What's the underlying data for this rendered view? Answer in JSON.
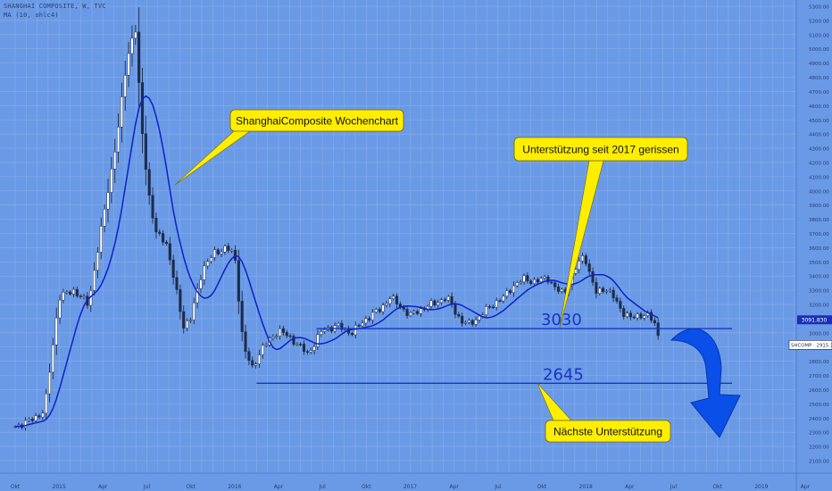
{
  "header": {
    "symbol_line": "SHANGHAI COMPOSITE, W, TVC",
    "indicator_line": "MA (10, ohlc4)"
  },
  "chart_data": {
    "type": "candlestick",
    "timeframe": "weekly",
    "ylim": [
      2000,
      5300
    ],
    "y_ticks": [
      2100,
      2200,
      2300,
      2400,
      2500,
      2600,
      2700,
      2800,
      2900,
      3000,
      3100,
      3200,
      3300,
      3400,
      3500,
      3600,
      3700,
      3800,
      3900,
      4000,
      4100,
      4200,
      4300,
      4400,
      4500,
      4600,
      4700,
      4800,
      4900,
      5000,
      5100,
      5200,
      5300
    ],
    "x_ticks": [
      {
        "label": "Okt",
        "t": 0
      },
      {
        "label": "2015",
        "t": 3
      },
      {
        "label": "Apr",
        "t": 6
      },
      {
        "label": "Jul",
        "t": 9
      },
      {
        "label": "Okt",
        "t": 12
      },
      {
        "label": "2016",
        "t": 15
      },
      {
        "label": "Apr",
        "t": 18
      },
      {
        "label": "Jul",
        "t": 21
      },
      {
        "label": "Okt",
        "t": 24
      },
      {
        "label": "2017",
        "t": 27
      },
      {
        "label": "Apr",
        "t": 30
      },
      {
        "label": "Jul",
        "t": 33
      },
      {
        "label": "Okt",
        "t": 36
      },
      {
        "label": "2018",
        "t": 39
      },
      {
        "label": "Apr",
        "t": 42
      },
      {
        "label": "Jul",
        "t": 45
      },
      {
        "label": "Okt",
        "t": 48
      },
      {
        "label": "2019",
        "t": 51
      },
      {
        "label": "Apr",
        "t": 54
      }
    ],
    "price_path": [
      [
        0,
        2340
      ],
      [
        1,
        2380
      ],
      [
        2,
        2450
      ],
      [
        3,
        3250
      ],
      [
        4,
        3300
      ],
      [
        5,
        3200
      ],
      [
        6,
        3800
      ],
      [
        7,
        4400
      ],
      [
        7.6,
        4900
      ],
      [
        8.2,
        5170
      ],
      [
        8.6,
        4500
      ],
      [
        9.1,
        4000
      ],
      [
        9.6,
        3700
      ],
      [
        10.3,
        3650
      ],
      [
        11,
        3300
      ],
      [
        11.5,
        3050
      ],
      [
        12,
        3100
      ],
      [
        12.8,
        3450
      ],
      [
        13.6,
        3560
      ],
      [
        14.4,
        3600
      ],
      [
        15,
        3550
      ],
      [
        15.6,
        2900
      ],
      [
        16.2,
        2750
      ],
      [
        16.8,
        2880
      ],
      [
        17.4,
        2950
      ],
      [
        18,
        3020
      ],
      [
        19,
        2950
      ],
      [
        20,
        2850
      ],
      [
        21,
        3020
      ],
      [
        22,
        3050
      ],
      [
        23,
        3000
      ],
      [
        24,
        3100
      ],
      [
        25,
        3170
      ],
      [
        25.6,
        3250
      ],
      [
        26.2,
        3200
      ],
      [
        27,
        3120
      ],
      [
        27.6,
        3160
      ],
      [
        28.5,
        3200
      ],
      [
        29.5,
        3250
      ],
      [
        30.5,
        3080
      ],
      [
        31,
        3060
      ],
      [
        31.8,
        3120
      ],
      [
        32.6,
        3200
      ],
      [
        33.4,
        3250
      ],
      [
        34,
        3330
      ],
      [
        34.8,
        3380
      ],
      [
        35.6,
        3360
      ],
      [
        36.4,
        3390
      ],
      [
        37,
        3300
      ],
      [
        37.5,
        3280
      ],
      [
        38.3,
        3450
      ],
      [
        38.9,
        3560
      ],
      [
        39.3,
        3400
      ],
      [
        39.7,
        3280
      ],
      [
        40.3,
        3320
      ],
      [
        40.9,
        3250
      ],
      [
        41.5,
        3150
      ],
      [
        42.1,
        3100
      ],
      [
        42.7,
        3130
      ],
      [
        43.3,
        3120
      ],
      [
        43.8,
        3050
      ],
      [
        44.1,
        2920
      ]
    ],
    "ma_name": "MA (10, ohlc4)",
    "current_price": {
      "symbol": "SHCOMP",
      "value": "2915.118"
    },
    "ma_value_label": "3091.830",
    "support_levels": [
      {
        "value": 3030,
        "label": "3030",
        "t_start": 20.6,
        "t_end": 49
      },
      {
        "value": 2645,
        "label": "2645",
        "t_start": 16.5,
        "t_end": 49
      }
    ],
    "annotations": [
      {
        "text": "ShanghaiComposite Wochenchart",
        "anchor_t": 10.9,
        "anchor_value": 4040
      },
      {
        "text": "Unterstützung seit 2017 gerissen",
        "anchor_t": 37.2,
        "anchor_value": 3030
      },
      {
        "text": "Nächste Unterstützung",
        "anchor_t": 35.7,
        "anchor_value": 2645
      }
    ],
    "colors": {
      "background": "#6a9ae6",
      "grid": "#87ade9",
      "candle_body": "#ffffff",
      "candle_outline": "#1d2c4a",
      "ma_line": "#0b22c8",
      "support_line": "#1436c8",
      "support_label": "#1a34c4",
      "callout_fill": "#ffee00",
      "arrow": "#0a4fe8"
    }
  }
}
